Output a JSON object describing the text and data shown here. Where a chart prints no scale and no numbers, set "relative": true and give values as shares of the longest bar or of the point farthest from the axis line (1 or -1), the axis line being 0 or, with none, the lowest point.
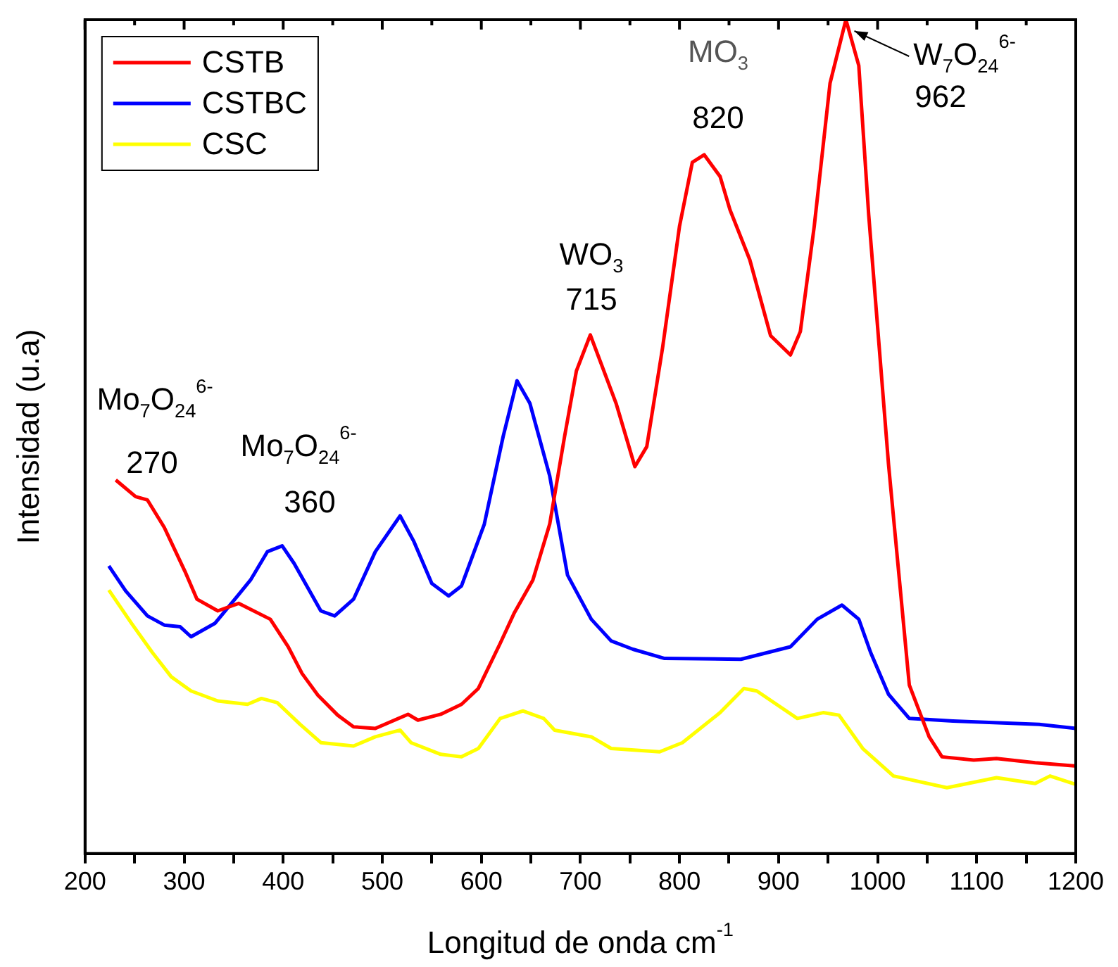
{
  "chart_data": {
    "type": "line",
    "relative": true,
    "xlabel": "Longitud de onda cm$^{-1}$",
    "ylabel": "Intensidad (u.a)",
    "legend": "top left",
    "grid": false,
    "marker": "none",
    "line_style": "solid",
    "xlim": [
      200,
      1200
    ],
    "xticks": [
      200,
      {
        "value": 250,
        "label": null
      },
      300,
      {
        "value": 350,
        "label": null
      },
      400,
      {
        "value": 450,
        "label": null
      },
      500,
      {
        "value": 550,
        "label": null
      },
      600,
      {
        "value": 650,
        "label": null
      },
      700,
      {
        "value": 750,
        "label": null
      },
      800,
      {
        "value": 850,
        "label": null
      },
      900,
      {
        "value": 950,
        "label": null
      },
      1000,
      {
        "value": 1050,
        "label": null
      },
      1100,
      {
        "value": 1150,
        "label": null
      },
      1200
    ],
    "series": [
      {
        "name": "CSTB",
        "color": "#ff0000",
        "x": [
          231,
          251,
          263,
          280,
          301,
          313,
          334,
          355,
          387,
          405,
          419,
          435,
          455,
          471,
          493,
          526,
          536,
          559,
          580,
          597,
          619,
          633,
          652,
          669,
          684,
          696,
          710,
          736,
          755,
          767,
          783,
          800,
          813,
          825,
          841,
          851,
          871,
          892,
          912,
          922,
          936,
          952,
          968,
          981,
          991,
          1011,
          1032,
          1052,
          1065,
          1097,
          1120,
          1159,
          1200
        ],
        "values": [
          0.448,
          0.428,
          0.424,
          0.391,
          0.338,
          0.305,
          0.291,
          0.3,
          0.281,
          0.248,
          0.216,
          0.19,
          0.166,
          0.152,
          0.15,
          0.167,
          0.16,
          0.167,
          0.179,
          0.198,
          0.252,
          0.288,
          0.328,
          0.395,
          0.5,
          0.579,
          0.622,
          0.54,
          0.464,
          0.488,
          0.607,
          0.752,
          0.829,
          0.838,
          0.812,
          0.772,
          0.712,
          0.621,
          0.598,
          0.626,
          0.752,
          0.924,
          1.0,
          0.945,
          0.766,
          0.467,
          0.202,
          0.14,
          0.116,
          0.112,
          0.114,
          0.109,
          0.105
        ]
      },
      {
        "name": "CSTBC",
        "color": "#0000ff",
        "x": [
          224,
          241,
          263,
          280,
          296,
          307,
          331,
          354,
          367,
          384,
          399,
          411,
          438,
          452,
          471,
          493,
          518,
          532,
          550,
          567,
          580,
          603,
          622,
          636,
          649,
          669,
          687,
          711,
          731,
          753,
          785,
          862,
          912,
          939,
          964,
          981,
          993,
          1011,
          1032,
          1076,
          1163,
          1200
        ],
        "values": [
          0.345,
          0.315,
          0.285,
          0.274,
          0.272,
          0.26,
          0.276,
          0.309,
          0.328,
          0.362,
          0.369,
          0.348,
          0.291,
          0.285,
          0.305,
          0.362,
          0.405,
          0.374,
          0.324,
          0.309,
          0.321,
          0.395,
          0.5,
          0.567,
          0.54,
          0.453,
          0.334,
          0.281,
          0.255,
          0.245,
          0.234,
          0.233,
          0.248,
          0.281,
          0.298,
          0.281,
          0.241,
          0.191,
          0.162,
          0.159,
          0.155,
          0.15
        ]
      },
      {
        "name": "CSC",
        "color": "#ffff00",
        "x": [
          224,
          247,
          268,
          287,
          307,
          334,
          364,
          378,
          394,
          417,
          438,
          471,
          493,
          518,
          529,
          559,
          580,
          597,
          619,
          642,
          663,
          674,
          711,
          731,
          780,
          803,
          841,
          865,
          878,
          919,
          945,
          961,
          985,
          1016,
          1070,
          1120,
          1159,
          1174,
          1200
        ],
        "values": [
          0.316,
          0.276,
          0.241,
          0.212,
          0.195,
          0.183,
          0.179,
          0.186,
          0.181,
          0.155,
          0.133,
          0.129,
          0.14,
          0.148,
          0.133,
          0.119,
          0.116,
          0.126,
          0.162,
          0.171,
          0.162,
          0.148,
          0.14,
          0.126,
          0.122,
          0.133,
          0.169,
          0.198,
          0.195,
          0.162,
          0.169,
          0.166,
          0.126,
          0.093,
          0.079,
          0.091,
          0.084,
          0.093,
          0.083
        ]
      }
    ],
    "annotations": [
      "Mo$_{7}$O$_{24}$$^{6-}$",
      "270",
      "Mo$_{7}$O$_{24}$$^{6-}$",
      "360",
      "WO$_{3}$",
      "715",
      "MO$_{3}$",
      "820",
      "W$_{7}$O$_{24}$$^{6-}$",
      "962"
    ]
  }
}
